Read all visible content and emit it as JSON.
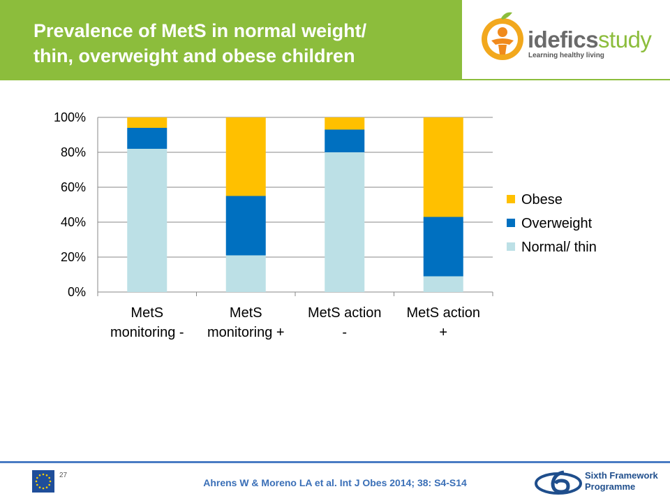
{
  "header": {
    "title_line1": "Prevalence of MetS in normal weight/",
    "title_line2": "thin, overweight and obese children",
    "bg_color": "#8cbd3c"
  },
  "logo": {
    "name_part1": "idefics",
    "name_part2": "study",
    "tagline": "Learning healthy living"
  },
  "chart_data": {
    "type": "bar",
    "stacked": true,
    "percent_stacked": true,
    "categories": [
      "MetS monitoring -",
      "MetS monitoring +",
      "MetS action -",
      "MetS action +"
    ],
    "category_lines": [
      [
        "MetS",
        "monitoring -"
      ],
      [
        "MetS",
        "monitoring +"
      ],
      [
        "MetS action",
        "-"
      ],
      [
        "MetS action",
        "+"
      ]
    ],
    "series": [
      {
        "name": "Normal/ thin",
        "color": "#bce0e6",
        "values": [
          82,
          21,
          80,
          9
        ]
      },
      {
        "name": "Overweight",
        "color": "#0070c0",
        "values": [
          12,
          34,
          13,
          34
        ]
      },
      {
        "name": "Obese",
        "color": "#ffc000",
        "values": [
          6,
          45,
          7,
          57
        ]
      }
    ],
    "ylim": [
      0,
      100
    ],
    "yticks": [
      "0%",
      "20%",
      "40%",
      "60%",
      "80%",
      "100%"
    ],
    "legend_order": [
      "Obese",
      "Overweight",
      "Normal/ thin"
    ],
    "legend_position": "right",
    "grid": true
  },
  "footer": {
    "page_number": "27",
    "citation": "Ahrens W & Moreno LA  et al. Int J Obes 2014; 38: S4-S14",
    "fp6_line1": "Sixth Framework",
    "fp6_line2": "Programme",
    "line_color": "#4a7cc4"
  }
}
